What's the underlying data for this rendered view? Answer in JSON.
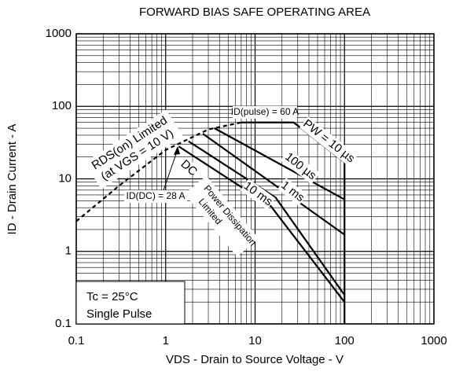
{
  "chart_data": {
    "type": "line",
    "title": "FORWARD BIAS SAFE OPERATING AREA",
    "x_label": "VDS - Drain to Source Voltage - V",
    "y_label": "ID - Drain Current - A",
    "xscale": "log",
    "yscale": "log",
    "xlim": [
      0.1,
      1000
    ],
    "ylim": [
      0.1,
      1000
    ],
    "xticks": [
      0.1,
      1,
      10,
      100,
      1000
    ],
    "yticks": [
      0.1,
      1,
      10,
      100,
      1000
    ],
    "grid": true,
    "series": [
      {
        "name": "RDS(on) Limited",
        "color": "#000000",
        "style": "dashed",
        "x": [
          0.1,
          0.3,
          1,
          3,
          7
        ],
        "values": [
          2.6,
          8,
          25,
          48,
          60
        ]
      },
      {
        "name": "PW = 10 µs",
        "color": "#000000",
        "style": "solid",
        "x": [
          7,
          27,
          100
        ],
        "values": [
          60,
          60,
          17
        ]
      },
      {
        "name": "100 µs",
        "color": "#000000",
        "style": "solid",
        "x": [
          3.5,
          100
        ],
        "values": [
          50,
          5.2
        ]
      },
      {
        "name": "1 ms",
        "color": "#000000",
        "style": "solid",
        "x": [
          2.6,
          100
        ],
        "values": [
          42,
          1.7
        ]
      },
      {
        "name": "10 ms",
        "color": "#000000",
        "style": "solid",
        "x": [
          1.8,
          17,
          100
        ],
        "values": [
          33,
          5.5,
          0.25
        ]
      },
      {
        "name": "DC",
        "color": "#000000",
        "style": "solid",
        "x": [
          1.4,
          15,
          100
        ],
        "values": [
          28,
          4.2,
          0.2
        ]
      },
      {
        "color": "#000000",
        "style": "solid",
        "x": [
          100,
          100
        ],
        "values": [
          17,
          0.1
        ]
      }
    ],
    "annotations": {
      "rds": [
        "RDS(on) Limited",
        "(at VGS = 10 V)"
      ],
      "pulse": "ID(pulse) = 60 A",
      "dc_current": "ID(DC) = 28 A",
      "power": [
        "Power Dissipation",
        "Limited"
      ],
      "conditions": [
        "Tc = 25°C",
        "Single Pulse"
      ]
    }
  }
}
